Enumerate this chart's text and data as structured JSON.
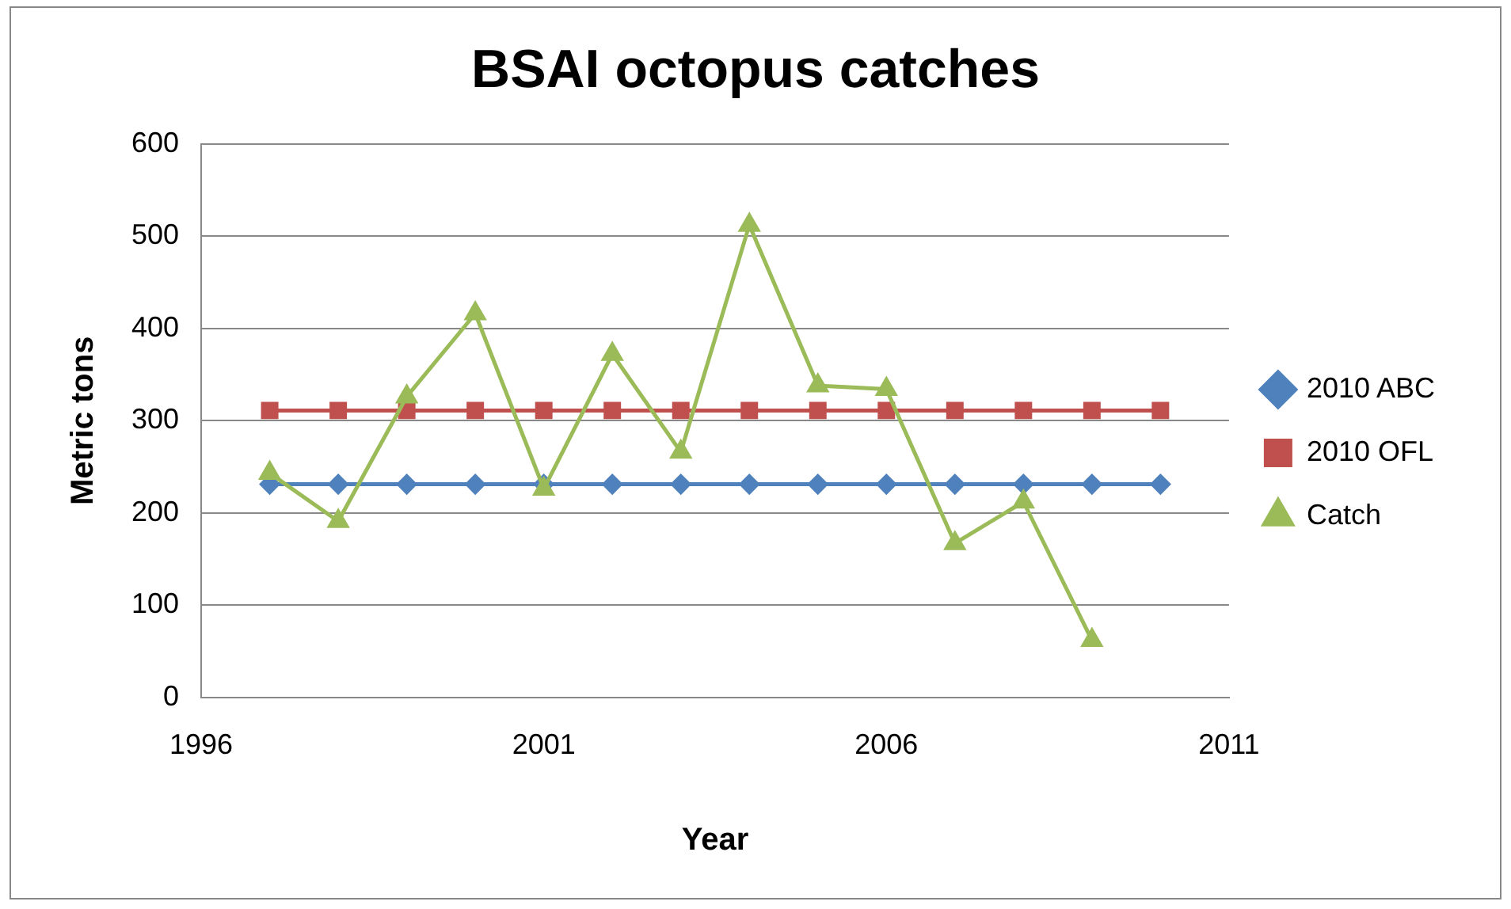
{
  "chart_data": {
    "type": "line",
    "title": "BSAI octopus catches",
    "xlabel": "Year",
    "ylabel": "Metric tons",
    "xlim": [
      1996,
      2011
    ],
    "xticks": [
      1996,
      2001,
      2006,
      2011
    ],
    "ylim": [
      0,
      600
    ],
    "yticks": [
      0,
      100,
      200,
      300,
      400,
      500,
      600
    ],
    "grid": "y",
    "legend": "right",
    "series": [
      {
        "name": "2010 ABC",
        "color": "#4f81bd",
        "marker": "diamond",
        "x": [
          1997,
          1998,
          1999,
          2000,
          2001,
          2002,
          2003,
          2004,
          2005,
          2006,
          2007,
          2008,
          2009,
          2010
        ],
        "values": [
          231,
          231,
          231,
          231,
          231,
          231,
          231,
          231,
          231,
          231,
          231,
          231,
          231,
          231
        ]
      },
      {
        "name": "2010 OFL",
        "color": "#c0504d",
        "marker": "square",
        "x": [
          1997,
          1998,
          1999,
          2000,
          2001,
          2002,
          2003,
          2004,
          2005,
          2006,
          2007,
          2008,
          2009,
          2010
        ],
        "values": [
          311,
          311,
          311,
          311,
          311,
          311,
          311,
          311,
          311,
          311,
          311,
          311,
          311,
          311
        ]
      },
      {
        "name": "Catch",
        "color": "#9bbb59",
        "marker": "triangle",
        "x": [
          1997,
          1998,
          1999,
          2000,
          2001,
          2002,
          2003,
          2004,
          2005,
          2006,
          2007,
          2008,
          2009
        ],
        "values": [
          243,
          191,
          326,
          416,
          226,
          372,
          266,
          512,
          338,
          334,
          167,
          212,
          62
        ]
      }
    ]
  }
}
